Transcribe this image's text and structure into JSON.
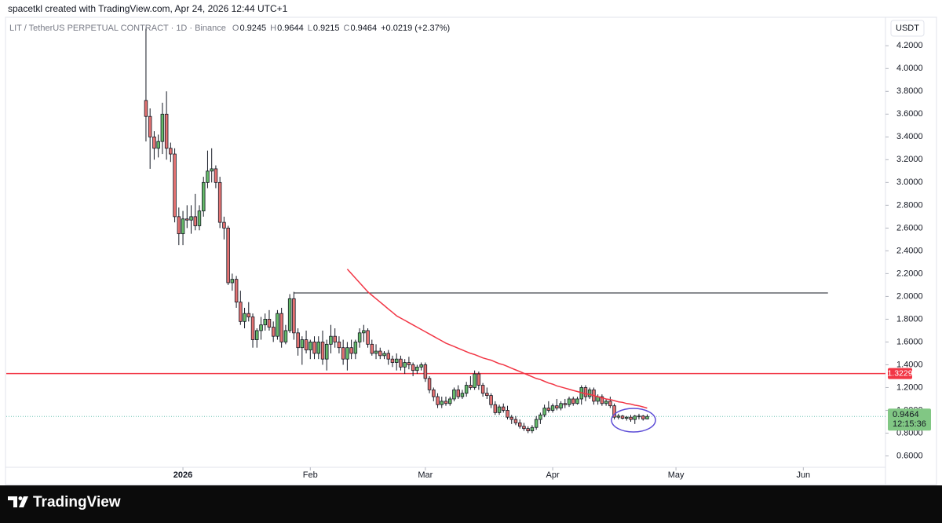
{
  "header": {
    "text": "spacetkl created with TradingView.com, Apr 24, 2026 12:44 UTC+1"
  },
  "footer": {
    "brand": "TradingView"
  },
  "chart_data": {
    "type": "candlestick",
    "symbol": "LIT / TetherUS PERPETUAL CONTRACT · 1D · Binance",
    "ohlc_letters": [
      "O",
      "H",
      "L",
      "C"
    ],
    "change_label": "+0.0219 (+2.37%)",
    "currency": "USDT",
    "countdown": "12:15:36",
    "up_color": "#66bb6a",
    "down_color": "#e57373",
    "ma_color": "#f23645",
    "xlim": [
      -34,
      180
    ],
    "xticks": [
      {
        "value": 9,
        "label": "2026"
      },
      {
        "value": 40,
        "label": "Feb"
      },
      {
        "value": 68,
        "label": "Mar"
      },
      {
        "value": 99,
        "label": "Apr"
      },
      {
        "value": 129,
        "label": "May"
      },
      {
        "value": 160,
        "label": "Jun"
      }
    ],
    "ylim": [
      0.5,
      4.45
    ],
    "yticks": [
      {
        "value": 0.6,
        "label": "0.6000"
      },
      {
        "value": 0.8,
        "label": "0.8000"
      },
      {
        "value": 1.0,
        "label": "1.0000"
      },
      {
        "value": 1.2,
        "label": "1.2000"
      },
      {
        "value": 1.4,
        "label": "1.4000"
      },
      {
        "value": 1.6,
        "label": "1.6000"
      },
      {
        "value": 1.8,
        "label": "1.8000"
      },
      {
        "value": 2.0,
        "label": "2.0000"
      },
      {
        "value": 2.2,
        "label": "2.2000"
      },
      {
        "value": 2.4,
        "label": "2.4000"
      },
      {
        "value": 2.6,
        "label": "2.6000"
      },
      {
        "value": 2.8,
        "label": "2.8000"
      },
      {
        "value": 3.0,
        "label": "3.0000"
      },
      {
        "value": 3.2,
        "label": "3.2000"
      },
      {
        "value": 3.4,
        "label": "3.4000"
      },
      {
        "value": 3.6,
        "label": "3.6000"
      },
      {
        "value": 3.8,
        "label": "3.8000"
      },
      {
        "value": 4.0,
        "label": "4.0000"
      },
      {
        "value": 4.2,
        "label": "4.2000"
      }
    ],
    "hline": {
      "value": 1.3229,
      "color": "#f23645"
    },
    "trendline": {
      "value": 2.03,
      "from": 36,
      "to": 166,
      "color": "#131722"
    },
    "open": [
      3.72,
      3.58,
      3.4,
      3.3,
      3.36,
      3.6,
      3.3,
      3.25,
      2.7,
      2.55,
      2.68,
      2.67,
      2.7,
      2.62,
      2.75,
      3.0,
      3.1,
      3.12,
      3.0,
      2.65,
      2.6,
      2.12,
      2.15,
      1.95,
      1.78,
      1.85,
      1.82,
      1.62,
      1.7,
      1.75,
      1.8,
      1.73,
      1.65,
      1.85,
      1.6,
      1.7,
      1.98,
      1.68,
      1.55,
      1.62,
      1.53,
      1.6,
      1.5,
      1.6,
      1.45,
      1.58,
      1.65,
      1.6,
      1.55,
      1.45,
      1.55,
      1.5,
      1.6,
      1.68,
      1.7,
      1.58,
      1.5,
      1.52,
      1.48,
      1.5,
      1.45,
      1.42,
      1.45,
      1.38,
      1.42,
      1.4,
      1.35,
      1.38,
      1.4,
      1.28,
      1.18,
      1.12,
      1.05,
      1.08,
      1.06,
      1.1,
      1.18,
      1.12,
      1.15,
      1.22,
      1.2,
      1.32,
      1.22,
      1.15,
      1.13,
      1.05,
      0.98,
      1.03,
      1.0,
      0.94,
      0.92,
      0.89,
      0.86,
      0.84,
      0.82,
      0.85,
      0.92,
      0.96,
      1.02,
      1.0,
      1.04,
      1.02,
      1.06,
      1.05,
      1.1,
      1.06,
      1.1,
      1.2,
      1.12,
      1.18,
      1.08,
      1.12,
      1.06,
      1.08,
      1.04,
      0.94,
      0.95,
      0.93,
      0.94,
      0.92,
      0.95,
      0.95,
      0.9245
    ],
    "high": [
      4.35,
      3.65,
      3.45,
      3.42,
      3.7,
      3.8,
      3.35,
      3.3,
      2.78,
      2.75,
      2.8,
      2.8,
      2.9,
      2.8,
      3.05,
      3.28,
      3.3,
      3.15,
      3.05,
      2.7,
      2.62,
      2.2,
      2.18,
      2.05,
      1.9,
      1.95,
      1.85,
      1.72,
      1.82,
      1.85,
      1.88,
      1.78,
      1.88,
      1.9,
      1.75,
      2.02,
      2.04,
      1.72,
      1.65,
      1.7,
      1.62,
      1.65,
      1.65,
      1.7,
      1.62,
      1.75,
      1.72,
      1.65,
      1.62,
      1.6,
      1.62,
      1.62,
      1.72,
      1.75,
      1.72,
      1.62,
      1.58,
      1.55,
      1.52,
      1.53,
      1.48,
      1.5,
      1.48,
      1.45,
      1.47,
      1.42,
      1.4,
      1.42,
      1.42,
      1.3,
      1.2,
      1.15,
      1.12,
      1.12,
      1.12,
      1.2,
      1.22,
      1.18,
      1.25,
      1.3,
      1.35,
      1.34,
      1.24,
      1.2,
      1.15,
      1.08,
      1.05,
      1.06,
      1.04,
      0.96,
      0.95,
      0.92,
      0.89,
      0.86,
      0.87,
      0.95,
      0.98,
      1.05,
      1.08,
      1.06,
      1.1,
      1.08,
      1.1,
      1.12,
      1.12,
      1.12,
      1.22,
      1.22,
      1.2,
      1.2,
      1.14,
      1.14,
      1.1,
      1.12,
      1.06,
      0.97,
      0.96,
      0.95,
      0.96,
      0.96,
      0.97,
      0.96,
      0.9644
    ],
    "low": [
      3.36,
      3.12,
      3.2,
      3.22,
      3.25,
      3.2,
      3.18,
      2.65,
      2.45,
      2.45,
      2.6,
      2.55,
      2.58,
      2.58,
      2.7,
      2.95,
      3.0,
      2.95,
      2.6,
      2.5,
      2.1,
      2.05,
      1.9,
      1.75,
      1.72,
      1.78,
      1.55,
      1.55,
      1.62,
      1.7,
      1.7,
      1.6,
      1.62,
      1.55,
      1.58,
      1.68,
      1.62,
      1.48,
      1.4,
      1.5,
      1.45,
      1.45,
      1.45,
      1.4,
      1.35,
      1.5,
      1.55,
      1.5,
      1.4,
      1.35,
      1.45,
      1.45,
      1.55,
      1.6,
      1.55,
      1.48,
      1.45,
      1.45,
      1.45,
      1.4,
      1.38,
      1.35,
      1.35,
      1.32,
      1.36,
      1.3,
      1.32,
      1.35,
      1.25,
      1.15,
      1.08,
      1.02,
      1.02,
      1.04,
      1.04,
      1.08,
      1.1,
      1.1,
      1.12,
      1.18,
      1.18,
      1.18,
      1.12,
      1.1,
      1.02,
      0.96,
      0.96,
      0.98,
      0.92,
      0.88,
      0.87,
      0.84,
      0.82,
      0.8,
      0.8,
      0.83,
      0.88,
      0.94,
      0.98,
      0.98,
      1.0,
      1.0,
      1.02,
      1.03,
      1.04,
      1.05,
      1.05,
      1.08,
      1.1,
      1.05,
      1.05,
      1.04,
      1.04,
      1.02,
      0.92,
      0.92,
      0.92,
      0.91,
      0.9,
      0.88,
      0.92,
      0.91,
      0.9215
    ],
    "close": [
      3.58,
      3.4,
      3.3,
      3.36,
      3.6,
      3.3,
      3.25,
      2.7,
      2.55,
      2.68,
      2.67,
      2.7,
      2.62,
      2.75,
      3.0,
      3.1,
      3.12,
      3.0,
      2.65,
      2.6,
      2.12,
      2.15,
      1.95,
      1.78,
      1.85,
      1.82,
      1.62,
      1.7,
      1.75,
      1.8,
      1.73,
      1.65,
      1.85,
      1.6,
      1.7,
      1.98,
      1.68,
      1.55,
      1.62,
      1.53,
      1.6,
      1.5,
      1.6,
      1.45,
      1.58,
      1.65,
      1.6,
      1.55,
      1.45,
      1.55,
      1.5,
      1.6,
      1.68,
      1.7,
      1.58,
      1.5,
      1.52,
      1.48,
      1.5,
      1.45,
      1.42,
      1.45,
      1.38,
      1.42,
      1.4,
      1.35,
      1.38,
      1.4,
      1.28,
      1.18,
      1.12,
      1.05,
      1.08,
      1.06,
      1.1,
      1.18,
      1.12,
      1.15,
      1.22,
      1.2,
      1.32,
      1.22,
      1.15,
      1.13,
      1.05,
      0.98,
      1.03,
      1.0,
      0.94,
      0.92,
      0.89,
      0.86,
      0.84,
      0.82,
      0.85,
      0.92,
      0.96,
      1.02,
      1.0,
      1.04,
      1.02,
      1.06,
      1.05,
      1.1,
      1.06,
      1.1,
      1.2,
      1.12,
      1.18,
      1.08,
      1.12,
      1.06,
      1.08,
      1.04,
      0.94,
      0.95,
      0.93,
      0.94,
      0.92,
      0.95,
      0.95,
      0.9245,
      0.9464
    ],
    "ma": [
      null,
      null,
      null,
      null,
      null,
      null,
      null,
      null,
      null,
      null,
      null,
      null,
      null,
      null,
      null,
      null,
      null,
      null,
      null,
      null,
      null,
      null,
      null,
      null,
      null,
      null,
      null,
      null,
      null,
      null,
      null,
      null,
      null,
      null,
      null,
      null,
      null,
      null,
      null,
      null,
      null,
      null,
      null,
      null,
      null,
      null,
      null,
      null,
      null,
      2.24,
      2.2,
      2.16,
      2.12,
      2.08,
      2.04,
      2.01,
      1.98,
      1.95,
      1.92,
      1.89,
      1.86,
      1.83,
      1.81,
      1.79,
      1.77,
      1.75,
      1.73,
      1.71,
      1.69,
      1.67,
      1.65,
      1.63,
      1.61,
      1.59,
      1.575,
      1.56,
      1.545,
      1.53,
      1.515,
      1.5,
      1.49,
      1.475,
      1.46,
      1.45,
      1.44,
      1.425,
      1.41,
      1.4,
      1.385,
      1.37,
      1.355,
      1.34,
      1.325,
      1.31,
      1.295,
      1.28,
      1.27,
      1.255,
      1.24,
      1.23,
      1.215,
      1.205,
      1.195,
      1.185,
      1.175,
      1.165,
      1.155,
      1.145,
      1.14,
      1.13,
      1.12,
      1.11,
      1.1,
      1.095,
      1.085,
      1.075,
      1.07,
      1.06,
      1.055,
      1.045,
      1.04,
      1.03,
      1.02
    ]
  }
}
